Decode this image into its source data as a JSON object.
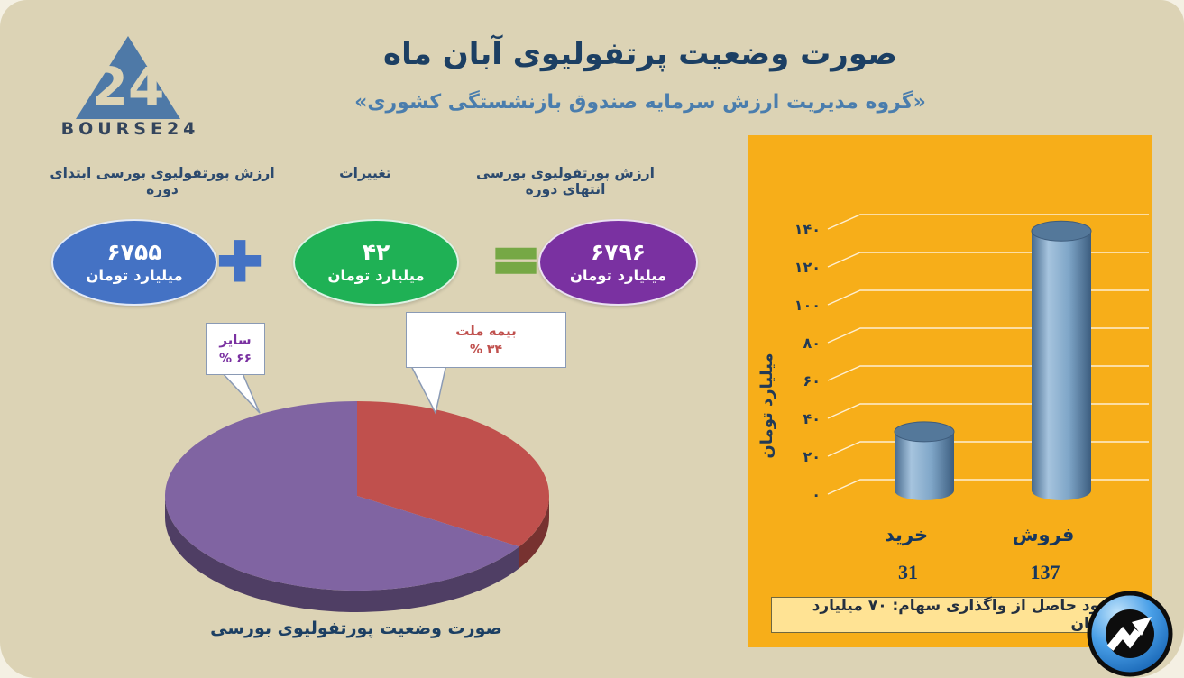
{
  "page": {
    "title": "صورت وضعیت پرتفولیوی آبان ماه",
    "subtitle": "«گروه مدیریت ارزش سرمایه صندوق بازنشستگی کشوری»"
  },
  "logo": {
    "brand": "BOURSE24",
    "mark": "24"
  },
  "equation": {
    "start_label": "ارزش پورتفولیوی بورسی ابتدای دوره",
    "change_label": "تغییرات",
    "end_label": "ارزش پورتفولیوی بورسی انتهای دوره",
    "start_value": "۶۷۵۵",
    "change_value": "۴۲",
    "end_value": "۶۷۹۶",
    "unit": "میلیارد تومان",
    "plus": "+",
    "equals": "=",
    "colors": {
      "start": "#4472c4",
      "change": "#1fb155",
      "end": "#7a31a1"
    }
  },
  "pie_section": {
    "caption": "صورت وضعیت پورتفولیوی بورسی",
    "callouts": [
      {
        "label": "سایر",
        "percent": "% ۶۶",
        "color": "#7a31a1"
      },
      {
        "label": "بیمه ملت",
        "percent": "% ۳۴",
        "color": "#c0504d"
      }
    ]
  },
  "bar_section": {
    "y_axis_title": "میلیارد تومان",
    "tick_labels": [
      "۰",
      "۲۰",
      "۴۰",
      "۶۰",
      "۸۰",
      "۱۰۰",
      "۱۲۰",
      "۱۴۰"
    ],
    "categories": [
      "خرید",
      "فروش"
    ],
    "value_labels": [
      "31",
      "137"
    ],
    "footer_note": "سود حاصل از واگذاری سهام:  ۷۰ میلیارد تومان",
    "panel_color": "#f7ae19"
  },
  "chart_data": [
    {
      "type": "pie",
      "title": "صورت وضعیت پورتفولیوی بورسی",
      "labels": [
        "بیمه ملت",
        "سایر"
      ],
      "values": [
        34,
        66
      ],
      "colors": [
        "#c0504d",
        "#8064a2"
      ],
      "unit": "percent",
      "legend_position": "callouts"
    },
    {
      "type": "bar",
      "categories": [
        "خرید",
        "فروش"
      ],
      "values": [
        31,
        137
      ],
      "title": "",
      "xlabel": "",
      "ylabel": "میلیارد تومان",
      "ylim": [
        0,
        140
      ],
      "tick_step": 20,
      "bar_color": "#6d96bd",
      "grid": true,
      "note": "سود حاصل از واگذاری سهام: ۷۰ میلیارد تومان"
    }
  ]
}
